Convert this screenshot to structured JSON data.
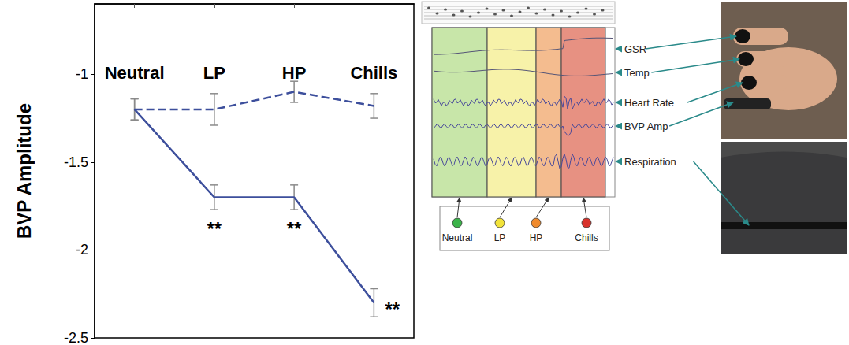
{
  "chart_data": {
    "type": "line",
    "y_label": "BVP Amplitude",
    "categories": [
      "Neutral",
      "LP",
      "HP",
      "Chills"
    ],
    "ylim": [
      -2.5,
      -0.6
    ],
    "yticks": [
      -2.5,
      -2,
      -1.5,
      -1
    ],
    "grid": false,
    "marker": "none",
    "series": [
      {
        "color": "#3d4f9c",
        "line_style": "dashed",
        "values": [
          -1.2,
          -1.2,
          -1.1,
          -1.18
        ],
        "errors": [
          0.06,
          0.09,
          0.06,
          0.07
        ]
      },
      {
        "color": "#3d4f9c",
        "line_style": "solid",
        "values": [
          -1.2,
          -1.7,
          -1.7,
          -2.3
        ],
        "errors": [
          0.06,
          0.07,
          0.07,
          0.08
        ],
        "significance": [
          null,
          "**",
          "**",
          "**"
        ]
      }
    ]
  },
  "signals_figure": {
    "signals": [
      "GSR",
      "Temp",
      "Heart Rate",
      "BVP Amp",
      "Respiration"
    ],
    "phases": [
      {
        "label": "Neutral",
        "color": "#b5dd8c",
        "dot_color": "#3bb34a"
      },
      {
        "label": "LP",
        "color": "#f4ee8c",
        "dot_color": "#f2e33a"
      },
      {
        "label": "HP",
        "color": "#f0a56a",
        "dot_color": "#f08a2c"
      },
      {
        "label": "Chills",
        "color": "#df6c58",
        "dot_color": "#d8322c"
      }
    ]
  }
}
